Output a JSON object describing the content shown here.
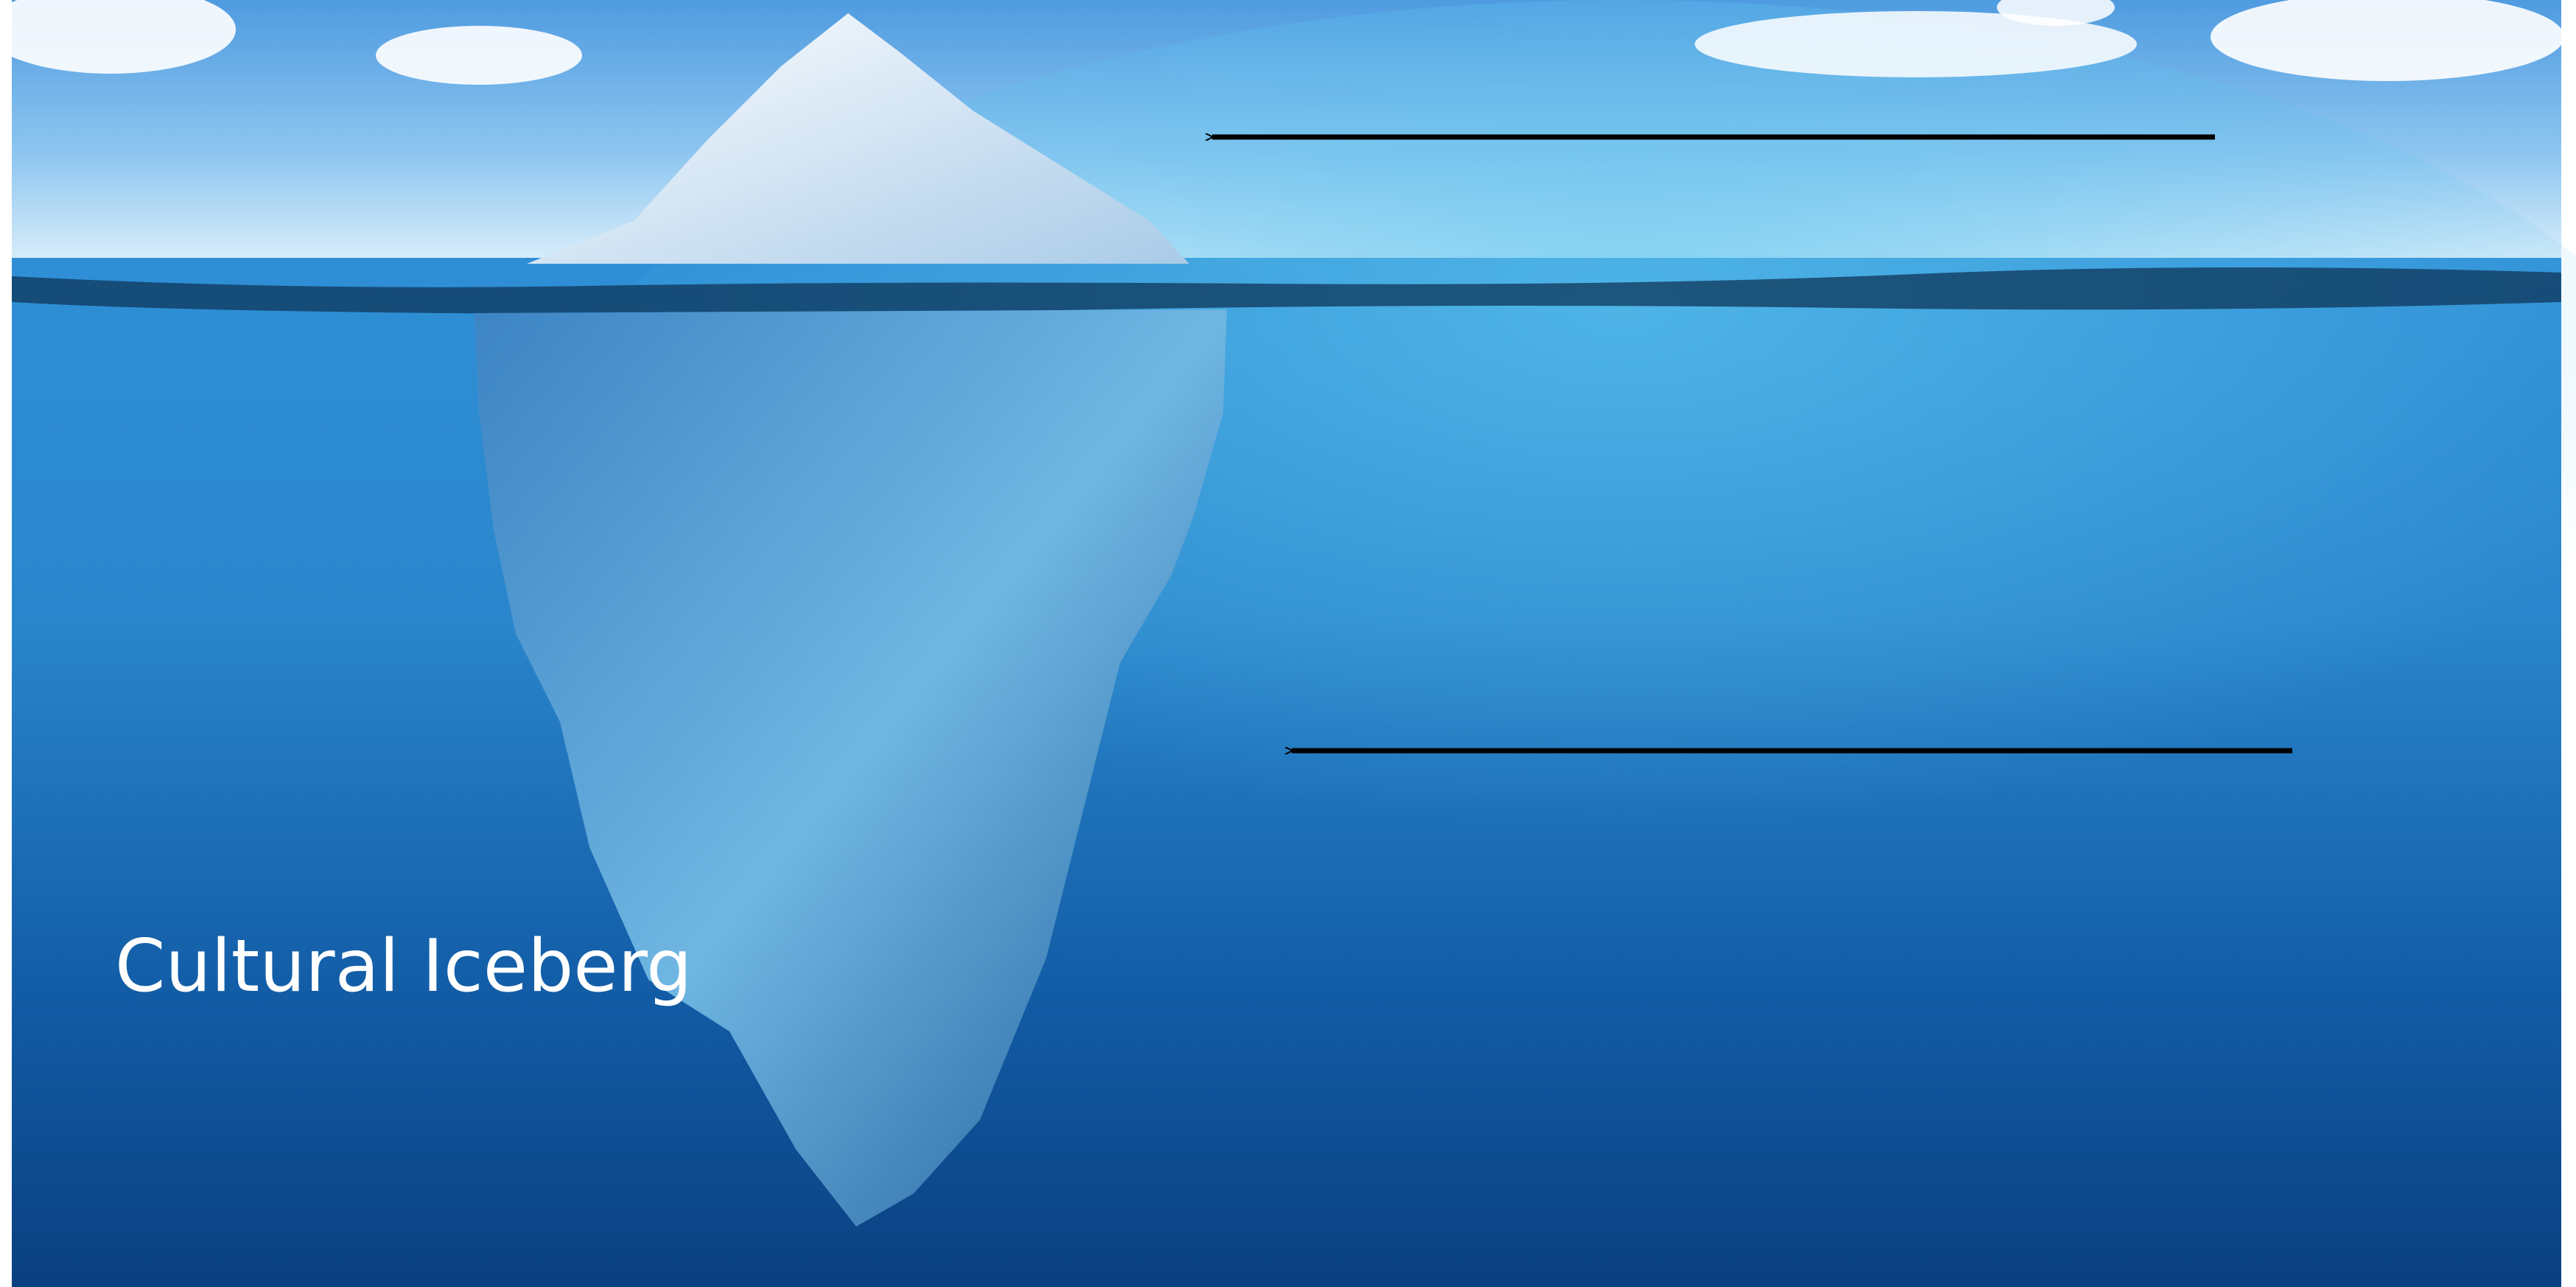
{
  "slide": {
    "title": "Cultural Iceberg"
  }
}
